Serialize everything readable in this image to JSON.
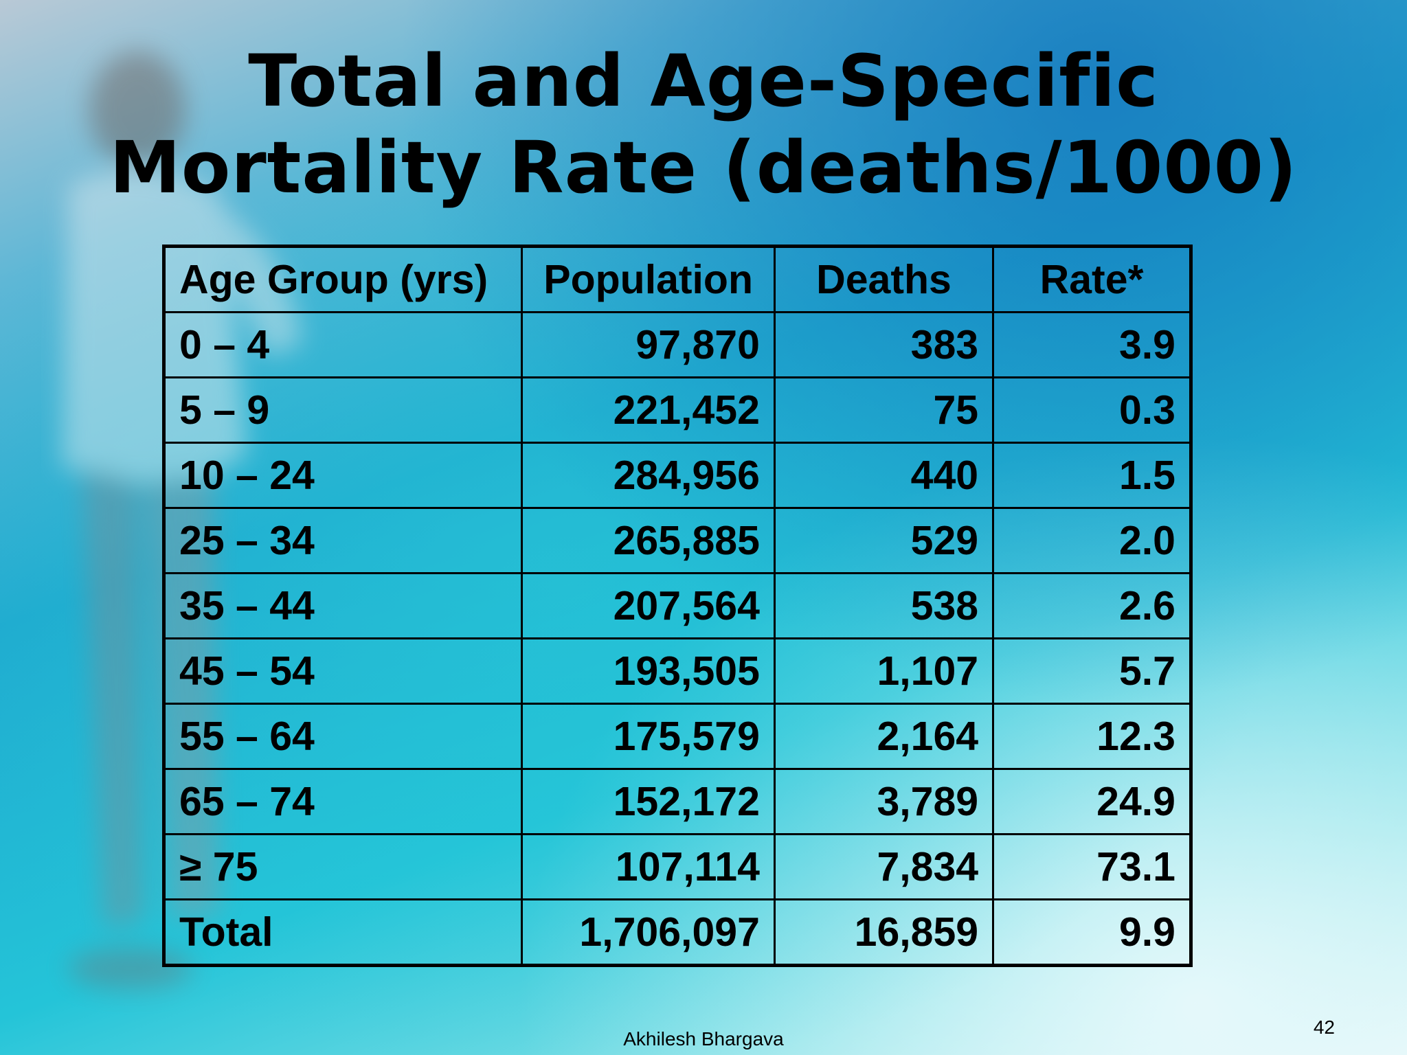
{
  "slide": {
    "title_line1": "Total and Age-Specific",
    "title_line2": "Mortality Rate (deaths/1000)",
    "author": "Akhilesh Bhargava",
    "page_number": "42"
  },
  "table": {
    "headers": [
      "Age Group (yrs)",
      "Population",
      "Deaths",
      "Rate*"
    ],
    "rows": [
      [
        "0 – 4",
        "97,870",
        "383",
        "3.9"
      ],
      [
        "5 – 9",
        "221,452",
        "75",
        "0.3"
      ],
      [
        "10 – 24",
        "284,956",
        "440",
        "1.5"
      ],
      [
        "25 – 34",
        "265,885",
        "529",
        "2.0"
      ],
      [
        "35 – 44",
        "207,564",
        "538",
        "2.6"
      ],
      [
        "45 – 54",
        "193,505",
        "1,107",
        "5.7"
      ],
      [
        "55 – 64",
        "175,579",
        "2,164",
        "12.3"
      ],
      [
        "65 – 74",
        "152,172",
        "3,789",
        "24.9"
      ],
      [
        "≥ 75",
        "107,114",
        "7,834",
        "73.1"
      ],
      [
        "Total",
        "1,706,097",
        "16,859",
        "9.9"
      ]
    ]
  },
  "colors": {
    "background_top": "#1fa9cf",
    "background_bottom": "#dff6f7",
    "text": "#000000"
  }
}
